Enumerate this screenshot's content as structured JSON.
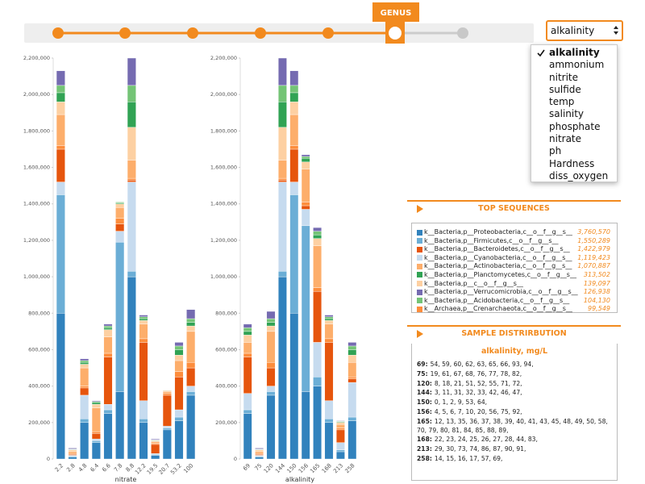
{
  "slider": {
    "label": "GENUS"
  },
  "dropdown": {
    "selected": "alkalinity",
    "options": [
      "alkalinity",
      "ammonium",
      "nitrite",
      "sulfide",
      "temp",
      "salinity",
      "phosphate",
      "nitrate",
      "ph",
      "Hardness",
      "diss_oxygen"
    ]
  },
  "chart_data": [
    {
      "type": "bar",
      "stacked": true,
      "x_label": "nitrate",
      "categories": [
        "2.2",
        "2.8",
        "4.8",
        "6.4",
        "6.6",
        "7.8",
        "8.8",
        "12.2",
        "19.5",
        "20.7",
        "53.2",
        "100"
      ],
      "ylim": [
        0,
        2200000
      ],
      "yticks": [
        0,
        {
          "value": 200000,
          "label": "200,000"
        },
        {
          "value": 400000,
          "label": "400,000"
        },
        {
          "value": 600000,
          "label": "600,000"
        },
        {
          "value": 800000,
          "label": "800,000"
        },
        {
          "value": 1000000,
          "label": "1,000,000"
        },
        {
          "value": 1200000,
          "label": "1,200,000"
        },
        {
          "value": 1400000,
          "label": "1,400,000"
        },
        {
          "value": 1600000,
          "label": "1,600,000"
        },
        {
          "value": 1800000,
          "label": "1,800,000"
        },
        {
          "value": 2000000,
          "label": "2,000,000"
        },
        {
          "value": 2200000,
          "label": "2,200,000"
        }
      ],
      "series": [
        {
          "color": "#3182bd",
          "values": [
            800000,
            10000,
            200000,
            90000,
            250000,
            370000,
            1000000,
            200000,
            20000,
            160000,
            210000,
            350000
          ]
        },
        {
          "color": "#6baed6",
          "values": [
            650000,
            5000,
            20000,
            10000,
            20000,
            820000,
            30000,
            20000,
            5000,
            10000,
            20000,
            20000
          ]
        },
        {
          "color": "#c6dbef",
          "values": [
            70000,
            5000,
            130000,
            10000,
            30000,
            60000,
            490000,
            100000,
            5000,
            10000,
            40000,
            30000
          ]
        },
        {
          "color": "#e6550d",
          "values": [
            180000,
            5000,
            40000,
            30000,
            260000,
            40000,
            10000,
            320000,
            50000,
            170000,
            180000,
            100000
          ]
        },
        {
          "color": "#fd8d3c",
          "values": [
            20000,
            5000,
            10000,
            10000,
            20000,
            30000,
            10000,
            20000,
            5000,
            10000,
            30000,
            30000
          ]
        },
        {
          "color": "#fdae6b",
          "values": [
            170000,
            10000,
            100000,
            130000,
            90000,
            60000,
            100000,
            80000,
            10000,
            10000,
            60000,
            170000
          ]
        },
        {
          "color": "#fdd0a2",
          "values": [
            70000,
            10000,
            20000,
            20000,
            40000,
            20000,
            180000,
            20000,
            5000,
            5000,
            30000,
            30000
          ]
        },
        {
          "color": "#31a354",
          "values": [
            50000,
            2000,
            10000,
            10000,
            10000,
            5000,
            140000,
            10000,
            3000,
            2000,
            30000,
            20000
          ]
        },
        {
          "color": "#74c476",
          "values": [
            40000,
            3000,
            10000,
            5000,
            10000,
            5000,
            90000,
            10000,
            2000,
            2000,
            20000,
            20000
          ]
        },
        {
          "color": "#756bb1",
          "values": [
            80000,
            5000,
            10000,
            5000,
            10000,
            0,
            150000,
            10000,
            5000,
            1000,
            20000,
            50000
          ]
        }
      ]
    },
    {
      "type": "bar",
      "stacked": true,
      "x_label": "alkalinity",
      "categories": [
        "69",
        "75",
        "120",
        "144",
        "150",
        "156",
        "165",
        "168",
        "213",
        "258"
      ],
      "ylim": [
        0,
        2200000
      ],
      "yticks": [
        0,
        {
          "value": 200000,
          "label": "200,000"
        },
        {
          "value": 400000,
          "label": "400,000"
        },
        {
          "value": 600000,
          "label": "600,000"
        },
        {
          "value": 800000,
          "label": "800,000"
        },
        {
          "value": 1000000,
          "label": "1,000,000"
        },
        {
          "value": 1200000,
          "label": "1,200,000"
        },
        {
          "value": 1400000,
          "label": "1,400,000"
        },
        {
          "value": 1600000,
          "label": "1,600,000"
        },
        {
          "value": 1800000,
          "label": "1,800,000"
        },
        {
          "value": 2000000,
          "label": "2,000,000"
        },
        {
          "value": 2200000,
          "label": "2,200,000"
        }
      ],
      "series": [
        {
          "color": "#3182bd",
          "values": [
            250000,
            10000,
            350000,
            1000000,
            800000,
            370000,
            400000,
            200000,
            40000,
            210000
          ]
        },
        {
          "color": "#6baed6",
          "values": [
            20000,
            5000,
            20000,
            30000,
            650000,
            910000,
            50000,
            20000,
            10000,
            20000
          ]
        },
        {
          "color": "#c6dbef",
          "values": [
            90000,
            5000,
            30000,
            490000,
            70000,
            90000,
            190000,
            100000,
            40000,
            190000
          ]
        },
        {
          "color": "#e6550d",
          "values": [
            200000,
            5000,
            100000,
            10000,
            180000,
            20000,
            280000,
            320000,
            70000,
            20000
          ]
        },
        {
          "color": "#fd8d3c",
          "values": [
            20000,
            5000,
            30000,
            10000,
            20000,
            20000,
            20000,
            20000,
            10000,
            10000
          ]
        },
        {
          "color": "#fdae6b",
          "values": [
            60000,
            10000,
            170000,
            100000,
            170000,
            180000,
            230000,
            80000,
            20000,
            80000
          ]
        },
        {
          "color": "#fdd0a2",
          "values": [
            40000,
            10000,
            30000,
            180000,
            70000,
            40000,
            40000,
            20000,
            10000,
            40000
          ]
        },
        {
          "color": "#31a354",
          "values": [
            20000,
            2000,
            20000,
            140000,
            50000,
            20000,
            20000,
            10000,
            4000,
            30000
          ]
        },
        {
          "color": "#74c476",
          "values": [
            20000,
            3000,
            20000,
            90000,
            40000,
            10000,
            20000,
            10000,
            3000,
            20000
          ]
        },
        {
          "color": "#756bb1",
          "values": [
            20000,
            5000,
            40000,
            150000,
            80000,
            10000,
            20000,
            10000,
            3000,
            20000
          ]
        }
      ]
    }
  ],
  "top_sequences": {
    "title": "TOP SEQUENCES",
    "items": [
      {
        "name": "k__Bacteria,p__Proteobacteria,c__o__f__g__s__",
        "value": "3,760,570",
        "color": "#3182bd"
      },
      {
        "name": "k__Bacteria,p__Firmicutes,c__o__f__g__s__",
        "value": "1,550,289",
        "color": "#6baed6"
      },
      {
        "name": "k__Bacteria,p__Bacteroidetes,c__o__f__g__s__",
        "value": "1,422,979",
        "color": "#e6550d"
      },
      {
        "name": "k__Bacteria,p__Cyanobacteria,c__o__f__g__s__",
        "value": "1,119,423",
        "color": "#c6dbef"
      },
      {
        "name": "k__Bacteria,p__Actinobacteria,c__o__f__g__s__",
        "value": "1,070,887",
        "color": "#fdae6b"
      },
      {
        "name": "k__Bacteria,p__Planctomycetes,c__o__f__g__s__",
        "value": "313,502",
        "color": "#31a354"
      },
      {
        "name": "k__Bacteria,p__c__o__f__g__s__",
        "value": "139,097",
        "color": "#fdd0a2"
      },
      {
        "name": "k__Bacteria,p__Verrucomicrobia,c__o__f__g__s__",
        "value": "126,938",
        "color": "#756bb1"
      },
      {
        "name": "k__Bacteria,p__Acidobacteria,c__o__f__g__s__",
        "value": "104,130",
        "color": "#74c476"
      },
      {
        "name": "k__Archaea,p__Crenarchaeota,c__o__f__g__s__",
        "value": "99,549",
        "color": "#fd8d3c"
      }
    ]
  },
  "sample_distribution": {
    "title": "SAMPLE DISTRIRBUTION",
    "subtitle": "alkalinity, mg/L",
    "rows": [
      {
        "key": "69:",
        "text": "54, 59, 60, 62, 63, 65, 66, 93, 94,"
      },
      {
        "key": "75:",
        "text": "19, 61, 67, 68, 76, 77, 78, 82,"
      },
      {
        "key": "120:",
        "text": "8, 18, 21, 51, 52, 55, 71, 72,"
      },
      {
        "key": "144:",
        "text": "3, 11, 31, 32, 33, 42, 46, 47,"
      },
      {
        "key": "150:",
        "text": "0, 1, 2, 9, 53, 64,"
      },
      {
        "key": "156:",
        "text": "4, 5, 6, 7, 10, 20, 56, 75, 92,"
      },
      {
        "key": "165:",
        "text": "12, 13, 35, 36, 37, 38, 39, 40, 41, 43, 45, 48, 49, 50, 58, 70, 79, 80, 81, 84, 85, 88, 89,"
      },
      {
        "key": "168:",
        "text": "22, 23, 24, 25, 26, 27, 28, 44, 83,"
      },
      {
        "key": "213:",
        "text": "29, 30, 73, 74, 86, 87, 90, 91,"
      },
      {
        "key": "258:",
        "text": "14, 15, 16, 17, 57, 69,"
      }
    ]
  }
}
